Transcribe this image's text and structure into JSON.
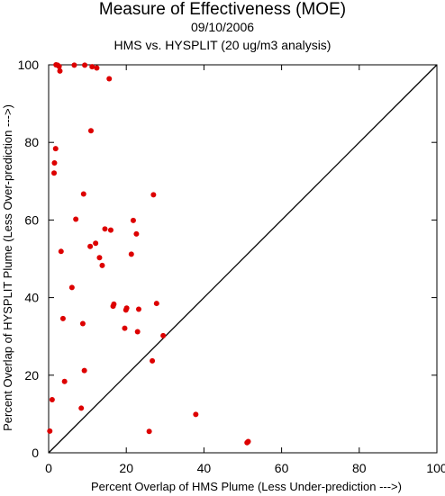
{
  "chart_data": {
    "type": "scatter",
    "title": "Measure of Effectiveness (MOE)",
    "subtitle_date": "09/10/2006",
    "subtitle_comparison": "HMS vs. HYSPLIT  (20 ug/m3 analysis)",
    "xlabel": "Percent Overlap of HMS Plume (Less Under-prediction --->)",
    "ylabel": "Percent Overlap of HYSPLIT Plume (Less Over-prediction --->)",
    "xlim": [
      0,
      100
    ],
    "ylim": [
      0,
      100
    ],
    "x_ticks": [
      "0",
      "20",
      "40",
      "60",
      "80",
      "100"
    ],
    "y_ticks": [
      "0",
      "20",
      "40",
      "60",
      "80",
      "100"
    ],
    "reference_line": "y = x",
    "grid": false,
    "point_color": "#dd0000",
    "series": [
      {
        "points": [
          {
            "x": 1.9,
            "y": 100
          },
          {
            "x": 2.3,
            "y": 99.9
          },
          {
            "x": 2.7,
            "y": 99.6
          },
          {
            "x": 2.9,
            "y": 98.4
          },
          {
            "x": 6.6,
            "y": 99.9
          },
          {
            "x": 9.3,
            "y": 99.9
          },
          {
            "x": 11.2,
            "y": 99.5
          },
          {
            "x": 12.4,
            "y": 99.2
          },
          {
            "x": 15.6,
            "y": 96.4
          },
          {
            "x": 10.9,
            "y": 83.0
          },
          {
            "x": 1.8,
            "y": 78.4
          },
          {
            "x": 1.5,
            "y": 74.7
          },
          {
            "x": 1.4,
            "y": 72.1
          },
          {
            "x": 9.0,
            "y": 66.7
          },
          {
            "x": 27.0,
            "y": 66.5
          },
          {
            "x": 7.0,
            "y": 60.2
          },
          {
            "x": 21.8,
            "y": 59.9
          },
          {
            "x": 14.5,
            "y": 57.7
          },
          {
            "x": 16.0,
            "y": 57.4
          },
          {
            "x": 22.6,
            "y": 56.4
          },
          {
            "x": 12.1,
            "y": 54.0
          },
          {
            "x": 10.7,
            "y": 53.2
          },
          {
            "x": 3.2,
            "y": 51.9
          },
          {
            "x": 21.3,
            "y": 51.2
          },
          {
            "x": 13.1,
            "y": 50.3
          },
          {
            "x": 13.8,
            "y": 48.3
          },
          {
            "x": 6.0,
            "y": 42.6
          },
          {
            "x": 27.8,
            "y": 38.5
          },
          {
            "x": 16.8,
            "y": 38.3
          },
          {
            "x": 16.6,
            "y": 37.8
          },
          {
            "x": 20.1,
            "y": 37.3
          },
          {
            "x": 19.9,
            "y": 36.8
          },
          {
            "x": 23.2,
            "y": 37.0
          },
          {
            "x": 3.7,
            "y": 34.6
          },
          {
            "x": 8.8,
            "y": 33.3
          },
          {
            "x": 19.6,
            "y": 32.1
          },
          {
            "x": 22.9,
            "y": 31.2
          },
          {
            "x": 29.5,
            "y": 30.2
          },
          {
            "x": 26.7,
            "y": 23.7
          },
          {
            "x": 9.2,
            "y": 21.2
          },
          {
            "x": 4.1,
            "y": 18.4
          },
          {
            "x": 0.9,
            "y": 13.7
          },
          {
            "x": 8.4,
            "y": 11.5
          },
          {
            "x": 37.9,
            "y": 9.9
          },
          {
            "x": 0.3,
            "y": 5.6
          },
          {
            "x": 25.9,
            "y": 5.5
          },
          {
            "x": 51.4,
            "y": 2.9
          },
          {
            "x": 51.1,
            "y": 2.6
          }
        ]
      }
    ]
  }
}
